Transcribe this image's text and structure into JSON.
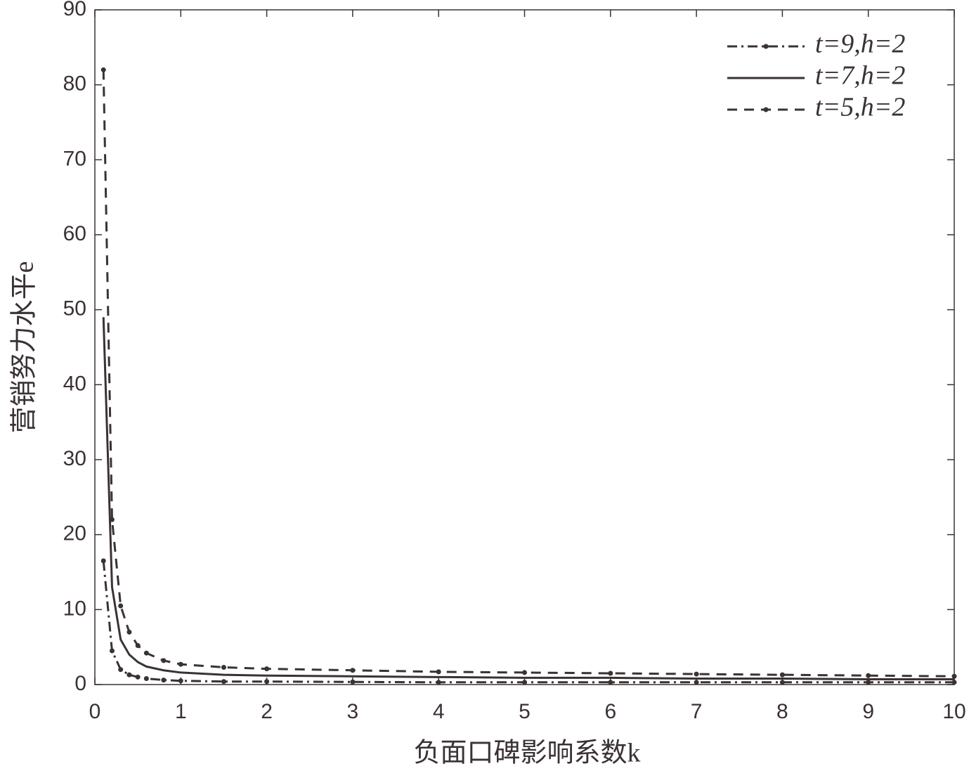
{
  "chart_data": {
    "type": "line",
    "xlabel": "负面口碑影响系数k",
    "ylabel": "营销努力水平e",
    "x": [
      0.1,
      0.2,
      0.3,
      0.4,
      0.5,
      0.6,
      0.8,
      1,
      1.5,
      2,
      3,
      4,
      5,
      6,
      7,
      8,
      9,
      10
    ],
    "series": [
      {
        "name": "t=9,h=2",
        "color": "#3a3233",
        "linestyle": "dashdot",
        "marker": true,
        "values": [
          16.5,
          4.5,
          2,
          1.3,
          1,
          0.8,
          0.6,
          0.5,
          0.4,
          0.4,
          0.35,
          0.3,
          0.3,
          0.3,
          0.3,
          0.3,
          0.3,
          0.3
        ]
      },
      {
        "name": "t=7,h=2",
        "color": "#3a3233",
        "linestyle": "solid",
        "marker": false,
        "values": [
          49,
          13,
          6,
          4,
          3,
          2.4,
          1.9,
          1.6,
          1.3,
          1.2,
          1.1,
          1.0,
          0.9,
          0.9,
          0.8,
          0.8,
          0.7,
          0.7
        ]
      },
      {
        "name": "t=5,h=2",
        "color": "#3a3233",
        "linestyle": "dashed",
        "marker": true,
        "values": [
          82,
          22,
          10.5,
          7,
          5.2,
          4.2,
          3.2,
          2.7,
          2.3,
          2.1,
          1.9,
          1.7,
          1.6,
          1.5,
          1.4,
          1.3,
          1.2,
          1.1
        ]
      }
    ],
    "xlim": [
      0,
      10
    ],
    "xticks": [
      0,
      1,
      2,
      3,
      4,
      5,
      6,
      7,
      8,
      9,
      10
    ],
    "ylim": [
      0,
      90
    ],
    "yticks": [
      0,
      10,
      20,
      30,
      40,
      50,
      60,
      70,
      80,
      90
    ],
    "grid": false,
    "legend": "upper right"
  }
}
